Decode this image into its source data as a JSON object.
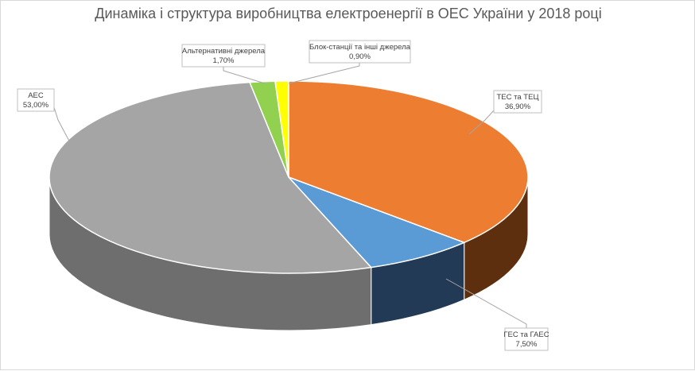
{
  "chart_data": {
    "type": "pie",
    "title": "Динаміка і структура виробництва електроенергії в ОЕС України у 2018 році",
    "three_d": true,
    "start_angle_deg": 0,
    "series": [
      {
        "name": "ТЕС та ТЕЦ",
        "value": 36.9,
        "label": "36,90%",
        "color": "#ED7D31",
        "side_color": "#5E2F0E"
      },
      {
        "name": "ГЕС та ГАЕС",
        "value": 7.5,
        "label": "7,50%",
        "color": "#5B9BD5",
        "side_color": "#223A55"
      },
      {
        "name": "АЕС",
        "value": 53.0,
        "label": "53,00%",
        "color": "#A5A5A5",
        "side_color": "#6E6E6E"
      },
      {
        "name": "Альтернативні джерела",
        "value": 1.7,
        "label": "1,70%",
        "color": "#92D050",
        "side_color": "#4E7A27"
      },
      {
        "name": "Блок-станції та інші джерела",
        "value": 0.9,
        "label": "0,90%",
        "color": "#FFFF00",
        "side_color": "#8A8A00"
      }
    ]
  }
}
